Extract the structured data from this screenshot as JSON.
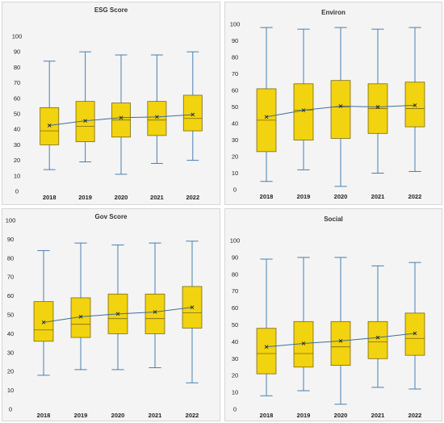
{
  "chart_data": [
    {
      "type": "box",
      "title": "ESG Score",
      "ylim": [
        0,
        100
      ],
      "yticks": [
        "0",
        "10",
        "20",
        "30",
        "40",
        "50",
        "60",
        "70",
        "80",
        "90",
        "100"
      ],
      "categories": [
        "2018",
        "2019",
        "2020",
        "2021",
        "2022"
      ],
      "boxes": [
        {
          "min": 14,
          "q1": 30,
          "median": 39,
          "q3": 54,
          "max": 84,
          "mean": 42.5
        },
        {
          "min": 19,
          "q1": 32,
          "median": 42,
          "q3": 58,
          "max": 90,
          "mean": 45.5
        },
        {
          "min": 11,
          "q1": 35,
          "median": 46,
          "q3": 57,
          "max": 88,
          "mean": 47.5
        },
        {
          "min": 18,
          "q1": 36,
          "median": 46,
          "q3": 58,
          "max": 88,
          "mean": 48
        },
        {
          "min": 20,
          "q1": 39,
          "median": 47,
          "q3": 62,
          "max": 90,
          "mean": 49.5
        }
      ]
    },
    {
      "type": "box",
      "title": "Environ",
      "ylim": [
        0,
        100
      ],
      "yticks": [
        "0",
        "10",
        "20",
        "30",
        "40",
        "50",
        "60",
        "70",
        "80",
        "90",
        "100"
      ],
      "categories": [
        "2018",
        "2019",
        "2020",
        "2021",
        "2022"
      ],
      "boxes": [
        {
          "min": 5,
          "q1": 23,
          "median": 42,
          "q3": 61,
          "max": 98,
          "mean": 44
        },
        {
          "min": 12,
          "q1": 30,
          "median": 48,
          "q3": 64,
          "max": 97,
          "mean": 48
        },
        {
          "min": 2,
          "q1": 31,
          "median": 50,
          "q3": 66,
          "max": 98,
          "mean": 50.5
        },
        {
          "min": 10,
          "q1": 34,
          "median": 49,
          "q3": 64,
          "max": 97,
          "mean": 50
        },
        {
          "min": 11,
          "q1": 38,
          "median": 49,
          "q3": 65,
          "max": 98,
          "mean": 51
        }
      ]
    },
    {
      "type": "box",
      "title": "Gov Score",
      "ylim": [
        0,
        100
      ],
      "yticks": [
        "0",
        "10",
        "20",
        "30",
        "40",
        "50",
        "60",
        "70",
        "80",
        "90",
        "100"
      ],
      "categories": [
        "2018",
        "2019",
        "2020",
        "2021",
        "2022"
      ],
      "boxes": [
        {
          "min": 18,
          "q1": 36,
          "median": 42,
          "q3": 57,
          "max": 84,
          "mean": 46
        },
        {
          "min": 21,
          "q1": 38,
          "median": 45,
          "q3": 59,
          "max": 88,
          "mean": 49
        },
        {
          "min": 21,
          "q1": 40,
          "median": 48,
          "q3": 61,
          "max": 87,
          "mean": 50.5
        },
        {
          "min": 22,
          "q1": 40,
          "median": 48,
          "q3": 61,
          "max": 88,
          "mean": 51.5
        },
        {
          "min": 14,
          "q1": 43,
          "median": 51,
          "q3": 65,
          "max": 89,
          "mean": 54
        }
      ]
    },
    {
      "type": "box",
      "title": "Social",
      "ylim": [
        0,
        100
      ],
      "yticks": [
        "0",
        "10",
        "20",
        "30",
        "40",
        "50",
        "60",
        "70",
        "80",
        "90",
        "100"
      ],
      "categories": [
        "2018",
        "2019",
        "2020",
        "2021",
        "2022"
      ],
      "boxes": [
        {
          "min": 8,
          "q1": 21,
          "median": 33,
          "q3": 48,
          "max": 89,
          "mean": 37
        },
        {
          "min": 11,
          "q1": 25,
          "median": 33,
          "q3": 52,
          "max": 90,
          "mean": 39
        },
        {
          "min": 3,
          "q1": 26,
          "median": 37,
          "q3": 52,
          "max": 90,
          "mean": 40.5
        },
        {
          "min": 13,
          "q1": 30,
          "median": 40,
          "q3": 52,
          "max": 85,
          "mean": 42.5
        },
        {
          "min": 12,
          "q1": 32,
          "median": 42,
          "q3": 57,
          "max": 87,
          "mean": 45
        }
      ]
    }
  ],
  "colors": {
    "box_fill": "#f2d30f",
    "box_stroke": "#7a6a10",
    "whisker": "#4a7fb0",
    "mean_line": "#3d6e9e",
    "mean_marker": "#222222",
    "panel_bg": "#f4f4f4"
  }
}
